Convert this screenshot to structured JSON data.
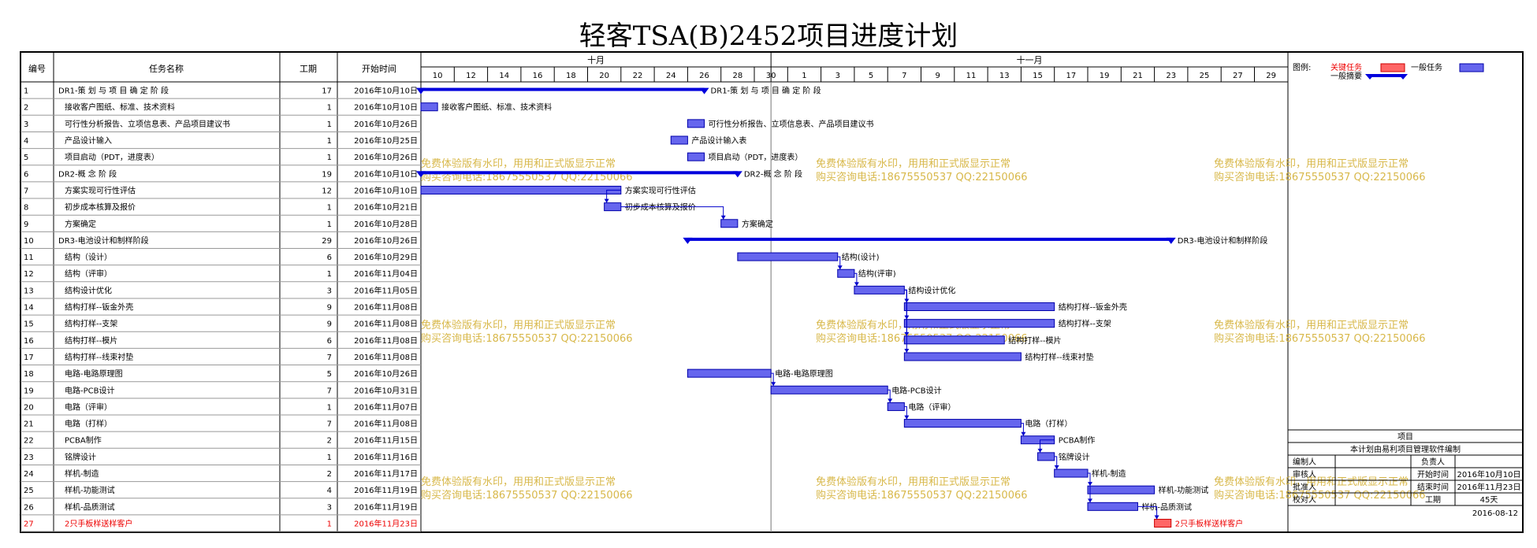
{
  "title": "轻客TSA(B)2452项目进度计划",
  "columns": {
    "num": "编号",
    "name": "任务名称",
    "dur": "工期",
    "start": "开始时间"
  },
  "months": [
    "十月",
    "十一月"
  ],
  "days": [
    "10",
    "12",
    "14",
    "16",
    "18",
    "20",
    "22",
    "24",
    "26",
    "28",
    "30",
    "1",
    "3",
    "5",
    "7",
    "9",
    "11",
    "13",
    "15",
    "17",
    "19",
    "21",
    "23",
    "25",
    "27",
    "29"
  ],
  "tasks": [
    {
      "num": "1",
      "name": "DR1-策 划 与 项 目 确 定 阶 段",
      "dur": "17",
      "start": "2016年10月10日",
      "summary": true,
      "label": "DR1-策 划 与 项 目 确 定 阶 段",
      "s": 0,
      "d": 17
    },
    {
      "num": "2",
      "name": "接收客户图纸、标准、技术资料",
      "dur": "1",
      "start": "2016年10月10日",
      "label": "接收客户图纸、标准、技术资料",
      "s": 0,
      "d": 1
    },
    {
      "num": "3",
      "name": "可行性分析报告、立项信息表、产品项目建议书",
      "dur": "1",
      "start": "2016年10月26日",
      "label": "可行性分析报告、立项信息表、产品项目建议书",
      "s": 16,
      "d": 1
    },
    {
      "num": "4",
      "name": "产品设计输入",
      "dur": "1",
      "start": "2016年10月25日",
      "label": "产品设计输入表",
      "s": 15,
      "d": 1
    },
    {
      "num": "5",
      "name": "项目启动（PDT，进度表）",
      "dur": "1",
      "start": "2016年10月26日",
      "label": "项目启动（PDT，进度表）",
      "s": 16,
      "d": 1
    },
    {
      "num": "6",
      "name": "DR2-概 念 阶 段",
      "dur": "19",
      "start": "2016年10月10日",
      "summary": true,
      "label": "DR2-概 念 阶 段",
      "s": 0,
      "d": 19
    },
    {
      "num": "7",
      "name": "方案实现可行性评估",
      "dur": "12",
      "start": "2016年10月10日",
      "label": "方案实现可行性评估",
      "s": 0,
      "d": 12
    },
    {
      "num": "8",
      "name": "初步成本核算及报价",
      "dur": "1",
      "start": "2016年10月21日",
      "label": "初步成本核算及报价",
      "s": 11,
      "d": 1
    },
    {
      "num": "9",
      "name": "方案确定",
      "dur": "1",
      "start": "2016年10月28日",
      "label": "方案确定",
      "s": 18,
      "d": 1
    },
    {
      "num": "10",
      "name": "DR3-电池设计和制样阶段",
      "dur": "29",
      "start": "2016年10月26日",
      "summary": true,
      "label": "DR3-电池设计和制样阶段",
      "s": 16,
      "d": 29
    },
    {
      "num": "11",
      "name": "结构（设计）",
      "dur": "6",
      "start": "2016年10月29日",
      "label": "结构(设计)",
      "s": 19,
      "d": 6
    },
    {
      "num": "12",
      "name": "结构（评审）",
      "dur": "1",
      "start": "2016年11月04日",
      "label": "结构(评审)",
      "s": 25,
      "d": 1
    },
    {
      "num": "13",
      "name": "结构设计优化",
      "dur": "3",
      "start": "2016年11月05日",
      "label": "结构设计优化",
      "s": 26,
      "d": 3
    },
    {
      "num": "14",
      "name": "结构打样--钣金外壳",
      "dur": "9",
      "start": "2016年11月08日",
      "label": "结构打样--钣金外壳",
      "s": 29,
      "d": 9
    },
    {
      "num": "15",
      "name": "结构打样--支架",
      "dur": "9",
      "start": "2016年11月08日",
      "label": "结构打样--支架",
      "s": 29,
      "d": 9
    },
    {
      "num": "16",
      "name": "结构打样--模片",
      "dur": "6",
      "start": "2016年11月08日",
      "label": "结构打样--模片",
      "s": 29,
      "d": 6
    },
    {
      "num": "17",
      "name": "结构打样--线束衬垫",
      "dur": "7",
      "start": "2016年11月08日",
      "label": "结构打样--线束衬垫",
      "s": 29,
      "d": 7
    },
    {
      "num": "18",
      "name": "电路-电路原理图",
      "dur": "5",
      "start": "2016年10月26日",
      "label": "电路-电路原理图",
      "s": 16,
      "d": 5
    },
    {
      "num": "19",
      "name": "电路-PCB设计",
      "dur": "7",
      "start": "2016年10月31日",
      "label": "电路-PCB设计",
      "s": 21,
      "d": 7
    },
    {
      "num": "20",
      "name": "电路（评审）",
      "dur": "1",
      "start": "2016年11月07日",
      "label": "电路（评审）",
      "s": 28,
      "d": 1
    },
    {
      "num": "21",
      "name": "电路（打样）",
      "dur": "7",
      "start": "2016年11月08日",
      "label": "电路（打样）",
      "s": 29,
      "d": 7
    },
    {
      "num": "22",
      "name": "PCBA制作",
      "dur": "2",
      "start": "2016年11月15日",
      "label": "PCBA制作",
      "s": 36,
      "d": 2
    },
    {
      "num": "23",
      "name": "铭牌设计",
      "dur": "1",
      "start": "2016年11月16日",
      "label": "铭牌设计",
      "s": 37,
      "d": 1
    },
    {
      "num": "24",
      "name": "样机-制造",
      "dur": "2",
      "start": "2016年11月17日",
      "label": "样机-制造",
      "s": 38,
      "d": 2
    },
    {
      "num": "25",
      "name": "样机-功能测试",
      "dur": "4",
      "start": "2016年11月19日",
      "label": "样机-功能测试",
      "s": 40,
      "d": 4
    },
    {
      "num": "26",
      "name": "样机-品质测试",
      "dur": "3",
      "start": "2016年11月19日",
      "label": "样机-品质测试",
      "s": 40,
      "d": 3
    },
    {
      "num": "27",
      "name": "2只手板样送样客户",
      "dur": "1",
      "start": "2016年11月23日",
      "critical": true,
      "label": "2只手板样送样客户",
      "s": 44,
      "d": 1
    }
  ],
  "legend": {
    "title": "图例:",
    "critical": "关键任务",
    "normal": "一般任务",
    "summary": "一般摘要"
  },
  "info": {
    "header": "项目",
    "note": "本计划由易利项目管理软件编制",
    "rows": [
      [
        "编制人",
        "",
        "负责人",
        ""
      ],
      [
        "审核人",
        "",
        "开始时间",
        "2016年10月10日"
      ],
      [
        "批准人",
        "",
        "结束时间",
        "2016年11月23日"
      ],
      [
        "校对人",
        "",
        "工期",
        "45天"
      ]
    ],
    "date": "2016-08-12"
  },
  "watermark": {
    "line1": "免费体验版有水印，用用和正式版显示正常",
    "line2": "购买咨询电话:18675550537 QQ:22150066"
  },
  "colors": {
    "bar": "#6666ee",
    "bar_stroke": "#0000aa",
    "summary": "#0000dd",
    "critical": "#ff6666",
    "critical_text": "#ee0000",
    "watermark": "#d8b84a",
    "link": "#0000cc"
  }
}
